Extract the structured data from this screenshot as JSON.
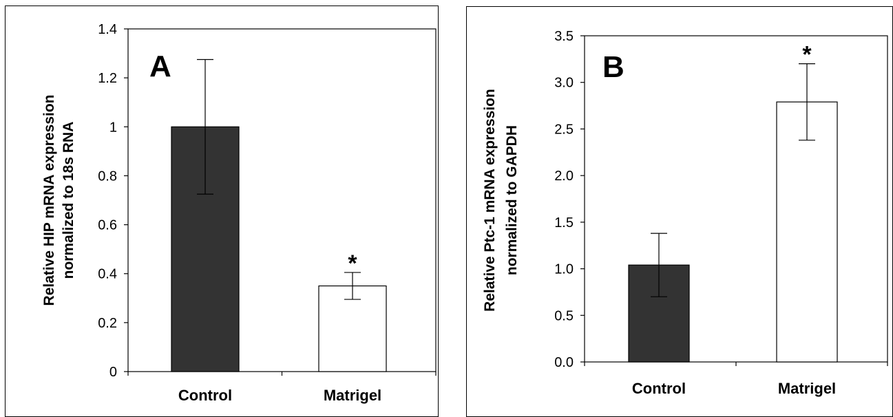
{
  "chart_data": [
    {
      "type": "bar",
      "panel_label": "A",
      "title": "",
      "xlabel": "",
      "ylabel_lines": [
        "Relative HIP mRNA expression",
        "normalized to 18s RNA"
      ],
      "categories": [
        "Control",
        "Matrigel"
      ],
      "values": [
        1.0,
        0.35
      ],
      "error": [
        0.275,
        0.055
      ],
      "significance": [
        "",
        "*"
      ],
      "bar_colors": [
        "#333333",
        "#ffffff"
      ],
      "ylim": [
        0,
        1.4
      ],
      "yticks": [
        0,
        0.2,
        0.4,
        0.6,
        0.8,
        1,
        1.2,
        1.4
      ],
      "ytick_labels": [
        "0",
        "0.2",
        "0.4",
        "0.6",
        "0.8",
        "1",
        "1.2",
        "1.4"
      ],
      "grid": false,
      "legend": "none"
    },
    {
      "type": "bar",
      "panel_label": "B",
      "title": "",
      "xlabel": "",
      "ylabel_lines": [
        "Relative Ptc-1 mRNA expression",
        "normalized to GAPDH"
      ],
      "categories": [
        "Control",
        "Matrigel"
      ],
      "values": [
        1.04,
        2.79
      ],
      "error": [
        0.34,
        0.41
      ],
      "significance": [
        "",
        "*"
      ],
      "bar_colors": [
        "#333333",
        "#ffffff"
      ],
      "ylim": [
        0,
        3.5
      ],
      "yticks": [
        0,
        0.5,
        1,
        1.5,
        2,
        2.5,
        3,
        3.5
      ],
      "ytick_labels": [
        "0.0",
        "0.5",
        "1.0",
        "1.5",
        "2.0",
        "2.5",
        "3.0",
        "3.5"
      ],
      "grid": false,
      "legend": "none"
    }
  ]
}
